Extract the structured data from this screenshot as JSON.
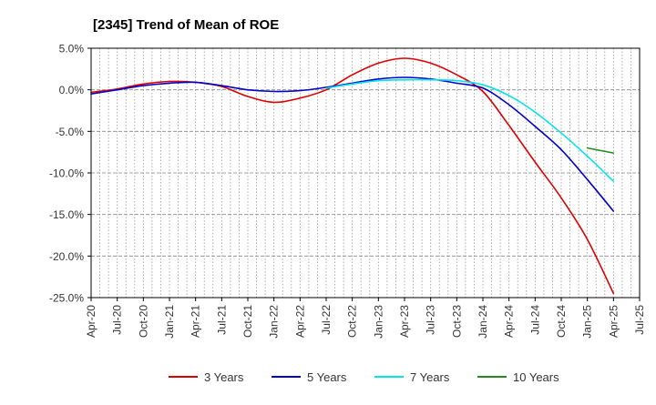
{
  "chart_data": {
    "type": "line",
    "title": "[2345]  Trend of Mean of ROE",
    "xlabel": "",
    "ylabel": "",
    "x_ticks": [
      "Apr-20",
      "Jul-20",
      "Oct-20",
      "Jan-21",
      "Apr-21",
      "Jul-21",
      "Oct-21",
      "Jan-22",
      "Apr-22",
      "Jul-22",
      "Oct-22",
      "Jan-23",
      "Apr-23",
      "Jul-23",
      "Oct-23",
      "Jan-24",
      "Apr-24",
      "Jul-24",
      "Oct-24",
      "Jan-25",
      "Apr-25",
      "Jul-25"
    ],
    "ylim": [
      -25,
      5
    ],
    "y_ticks": [
      5,
      0,
      -5,
      -10,
      -15,
      -20,
      -25
    ],
    "y_tick_labels": [
      "5.0%",
      "0.0%",
      "-5.0%",
      "-10.0%",
      "-15.0%",
      "-20.0%",
      "-25.0%"
    ],
    "grid": true,
    "legend_position": "bottom",
    "series": [
      {
        "name": "3 Years",
        "color": "#dd0000",
        "points": [
          [
            "Apr-20",
            -0.3
          ],
          [
            "Jul-20",
            0.1
          ],
          [
            "Oct-20",
            0.7
          ],
          [
            "Jan-21",
            1.0
          ],
          [
            "Apr-21",
            0.9
          ],
          [
            "Jul-21",
            0.4
          ],
          [
            "Oct-21",
            -0.8
          ],
          [
            "Jan-22",
            -1.5
          ],
          [
            "Apr-22",
            -1.0
          ],
          [
            "Jul-22",
            0.0
          ],
          [
            "Oct-22",
            1.8
          ],
          [
            "Jan-23",
            3.2
          ],
          [
            "Apr-23",
            3.8
          ],
          [
            "Jul-23",
            3.2
          ],
          [
            "Oct-23",
            1.8
          ],
          [
            "Jan-24",
            -0.2
          ],
          [
            "Apr-24",
            -4.3
          ],
          [
            "Jul-24",
            -8.7
          ],
          [
            "Oct-24",
            -13.0
          ],
          [
            "Jan-25",
            -18.0
          ],
          [
            "Apr-25",
            -24.5
          ]
        ]
      },
      {
        "name": "5 Years",
        "color": "#0000cc",
        "points": [
          [
            "Apr-20",
            -0.5
          ],
          [
            "Jul-20",
            0.0
          ],
          [
            "Oct-20",
            0.5
          ],
          [
            "Jan-21",
            0.8
          ],
          [
            "Apr-21",
            0.9
          ],
          [
            "Jul-21",
            0.5
          ],
          [
            "Oct-21",
            0.0
          ],
          [
            "Jan-22",
            -0.2
          ],
          [
            "Apr-22",
            -0.1
          ],
          [
            "Jul-22",
            0.3
          ],
          [
            "Oct-22",
            0.8
          ],
          [
            "Jan-23",
            1.3
          ],
          [
            "Apr-23",
            1.5
          ],
          [
            "Jul-23",
            1.3
          ],
          [
            "Oct-23",
            0.8
          ],
          [
            "Jan-24",
            0.2
          ],
          [
            "Apr-24",
            -1.8
          ],
          [
            "Jul-24",
            -4.4
          ],
          [
            "Oct-24",
            -7.2
          ],
          [
            "Jan-25",
            -10.8
          ],
          [
            "Apr-25",
            -14.6
          ]
        ]
      },
      {
        "name": "7 Years",
        "color": "#00e5ee",
        "points": [
          [
            "Jul-22",
            0.2
          ],
          [
            "Oct-22",
            0.7
          ],
          [
            "Jan-23",
            1.1
          ],
          [
            "Apr-23",
            1.2
          ],
          [
            "Jul-23",
            1.2
          ],
          [
            "Oct-23",
            1.1
          ],
          [
            "Jan-24",
            0.6
          ],
          [
            "Apr-24",
            -0.7
          ],
          [
            "Jul-24",
            -2.7
          ],
          [
            "Oct-24",
            -5.2
          ],
          [
            "Jan-25",
            -8.0
          ],
          [
            "Apr-25",
            -11.0
          ]
        ]
      },
      {
        "name": "10 Years",
        "color": "#228b22",
        "points": [
          [
            "Jan-25",
            -7.0
          ],
          [
            "Apr-25",
            -7.6
          ]
        ]
      }
    ]
  }
}
